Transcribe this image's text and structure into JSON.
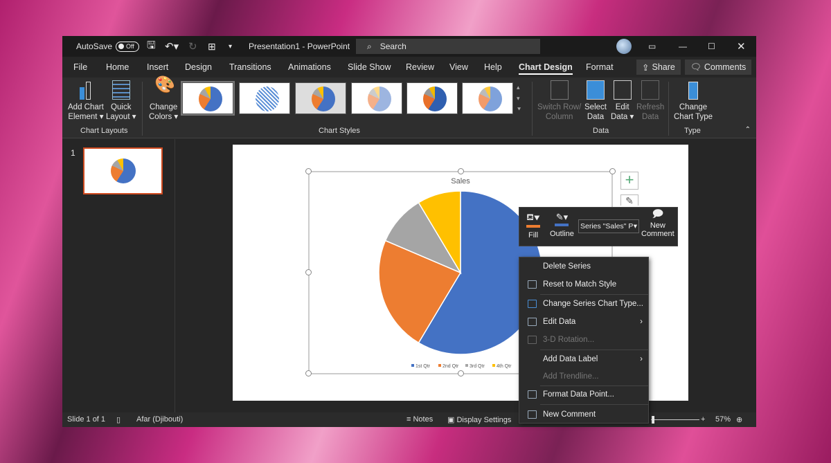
{
  "titlebar": {
    "autosave_label": "AutoSave",
    "autosave_state": "Off",
    "title": "Presentation1  -  PowerPoint",
    "search_placeholder": "Search"
  },
  "tabs": [
    "File",
    "Home",
    "Insert",
    "Design",
    "Transitions",
    "Animations",
    "Slide Show",
    "Review",
    "View",
    "Help",
    "Chart Design",
    "Format"
  ],
  "active_tab": "Chart Design",
  "share_label": "Share",
  "comments_label": "Comments",
  "ribbon": {
    "add_chart_element": [
      "Add Chart",
      "Element ▾"
    ],
    "quick_layout": [
      "Quick",
      "Layout ▾"
    ],
    "change_colors": [
      "Change",
      "Colors ▾"
    ],
    "switch_row_column": [
      "Switch Row/",
      "Column"
    ],
    "select_data": [
      "Select",
      "Data"
    ],
    "edit_data": [
      "Edit",
      "Data ▾"
    ],
    "refresh_data": [
      "Refresh",
      "Data"
    ],
    "change_chart_type": [
      "Change",
      "Chart Type"
    ],
    "groups": {
      "chart_layouts": "Chart Layouts",
      "chart_styles": "Chart Styles",
      "data": "Data",
      "type": "Type"
    }
  },
  "slides_pane": {
    "slide_number": "1"
  },
  "chart_data": {
    "type": "pie",
    "title": "Sales",
    "categories": [
      "1st Qtr",
      "2nd Qtr",
      "3rd Qtr",
      "4th Qtr"
    ],
    "values": [
      8.2,
      3.2,
      1.4,
      1.2
    ],
    "colors": [
      "#4472c4",
      "#ed7d31",
      "#a5a5a5",
      "#ffc000"
    ],
    "legend": "bottom"
  },
  "mini_toolbar": {
    "fill": "Fill",
    "outline": "Outline",
    "series_select": "Series \"Sales\" P",
    "new_comment": [
      "New",
      "Comment"
    ],
    "fill_color": "#ed7d31",
    "outline_color": "#4472c4"
  },
  "context_menu": [
    {
      "label": "Delete Series",
      "enabled": true
    },
    {
      "label": "Reset to Match Style",
      "enabled": true
    },
    {
      "label": "Change Series Chart Type...",
      "enabled": true
    },
    {
      "label": "Edit Data",
      "enabled": true,
      "submenu": true
    },
    {
      "label": "3-D Rotation...",
      "enabled": false
    },
    {
      "label": "Add Data Label",
      "enabled": true,
      "submenu": true
    },
    {
      "label": "Add Trendline...",
      "enabled": false
    },
    {
      "label": "Format Data Point...",
      "enabled": true
    },
    {
      "label": "New Comment",
      "enabled": true
    }
  ],
  "status": {
    "slide": "Slide 1 of 1",
    "language": "Afar (Djibouti)",
    "notes": "Notes",
    "display_settings": "Display Settings",
    "zoom": "57%",
    "zoom_level": 57
  }
}
